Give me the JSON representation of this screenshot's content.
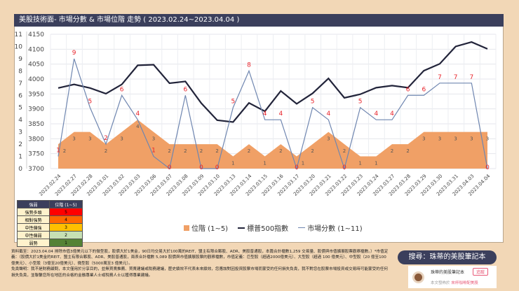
{
  "title": "美股技術面- 市場分數 & 市場位階 走勢 ( 2023.02.24~2023.04.04 )",
  "chart_data": {
    "type": "line",
    "categories": [
      "2023.02.24",
      "2023.02.27",
      "2023.02.28",
      "2023.03.01",
      "2023.03.02",
      "2023.03.03",
      "2023.03.06",
      "2023.03.07",
      "2023.03.08",
      "2023.03.09",
      "2023.03.10",
      "2023.03.13",
      "2023.03.14",
      "2023.03.15",
      "2023.03.16",
      "2023.03.17",
      "2023.03.20",
      "2023.03.21",
      "2023.03.22",
      "2023.03.23",
      "2023.03.24",
      "2023.03.27",
      "2023.03.28",
      "2023.03.29",
      "2023.03.30",
      "2023.03.31",
      "2023.04.03",
      "2023.04.04"
    ],
    "series": [
      {
        "name": "位階 (1~5)",
        "kind": "area",
        "axis": "left",
        "color": "#f0a066",
        "values": [
          2,
          3,
          3,
          2,
          3,
          4,
          3,
          2,
          2,
          2,
          2,
          1,
          2,
          1,
          2,
          1,
          2,
          3,
          2,
          1,
          1,
          2,
          2,
          3,
          3,
          3,
          3,
          3
        ]
      },
      {
        "name": "標普500指數",
        "kind": "line",
        "axis": "right",
        "color": "#22243a",
        "values": [
          3970,
          3982,
          3970,
          3951,
          3982,
          4046,
          4048,
          3986,
          3992,
          3919,
          3862,
          3856,
          3920,
          3892,
          3960,
          3917,
          3952,
          4002,
          3937,
          3949,
          3971,
          3978,
          3971,
          4028,
          4051,
          4109,
          4124,
          4101
        ]
      },
      {
        "name": "市場分數 (1~11)",
        "kind": "line",
        "axis": "left",
        "color": "#6f86b0",
        "values": [
          1,
          9,
          5,
          2,
          6,
          4,
          1,
          0,
          6,
          0,
          0,
          5,
          8,
          4,
          4,
          0,
          5,
          4,
          0,
          5,
          4,
          4,
          6,
          6,
          7,
          7,
          7,
          0
        ]
      }
    ],
    "left_axis": {
      "range": [
        0,
        11
      ],
      "ticks": [
        "0",
        "1",
        "2",
        "3",
        "4",
        "5",
        "6",
        "7",
        "8",
        "9",
        "10",
        "11"
      ]
    },
    "right_axis": {
      "range": [
        3700,
        4150
      ],
      "ticks": [
        "3700",
        "3750",
        "3800",
        "3850",
        "3900",
        "3950",
        "4000",
        "4050",
        "4100",
        "4150"
      ]
    },
    "grid": true,
    "legend_placement": "bottom"
  },
  "legend_table": {
    "headers": [
      "強弱",
      "位階 (1~5)"
    ],
    "rows": [
      {
        "label": "強勢多頭",
        "value": "5",
        "color": "#ff0000"
      },
      {
        "label": "相對強勢",
        "value": "4",
        "color": "#ff6600"
      },
      {
        "label": "中性偏強",
        "value": "3",
        "color": "#ffc000"
      },
      {
        "label": "中性偏弱",
        "value": "2",
        "color": "#c6e0b4"
      },
      {
        "label": "弱勢",
        "value": "1",
        "color": "#548235"
      }
    ]
  },
  "footer": {
    "data_note": "資料截至：2023.04.04 排除市值3億美元以下的微型股，股價大於1美金，90日均交易大於100萬的REIT、盟主有限合夥股、ADR、美股普通股，本篇合計檔數1,259 交易量、股價與市值擴展股票觀察檔數。）*市值定義：（股價大於1美金的REIT、盟主有限合夥股、ADR、美股普通股，兩表合計檔數 5,089 股價與市值擴展股票的觀察檔數，市值定義：巨型股（超過2000億美元）、大型股（超過 100 億美元）、中型股（20 億至100 億美元）、小型股（3億至20億美元）、微型股（5000萬至3 億美元）。",
    "disclaimer": "免責聲明：我不是財務顧問，本文僅用於分享目的，並無買賣推薦、買賣建議或稅務建議，歷史績效不代表未來績效，您應該對因投資股票市場而蒙受的任何損失負責，我不對您在股票市場投資或交易時可能蒙受的任何損失負責，並聯繫您所在地區的合格的金融專業人士或稅務人士以獲得專業建議。"
  },
  "search": "搜尋：珠蒂的美股筆記本",
  "card": {
    "name": "珠蒂的美股筆記本",
    "follow": "追蹤",
    "published_prefix": "本文發佈於",
    "published_site": "來杯咖啡配美股"
  }
}
